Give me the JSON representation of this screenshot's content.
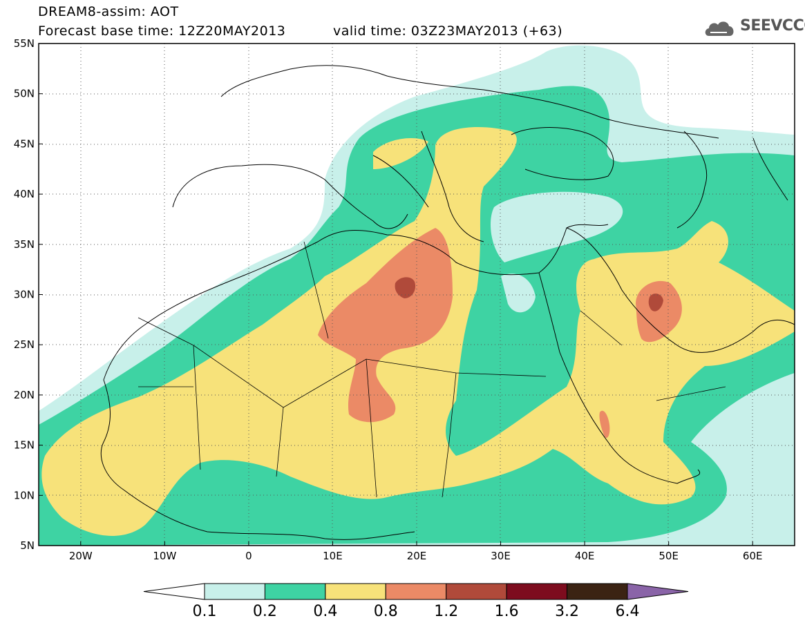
{
  "title": {
    "line1": "DREAM8-assim: AOT",
    "line2": "Forecast base time: 12Z20MAY2013",
    "valid": "valid time: 03Z23MAY2013 (+63)"
  },
  "logo": {
    "text": "SEEVCCC",
    "icon": "cloud-icon"
  },
  "map": {
    "lon_range": [
      -25,
      65
    ],
    "lat_range": [
      5,
      55
    ],
    "lon_ticks": [
      "20W",
      "10W",
      "0",
      "10E",
      "20E",
      "30E",
      "40E",
      "50E",
      "60E"
    ],
    "lat_ticks": [
      "55N",
      "50N",
      "45N",
      "40N",
      "35N",
      "30N",
      "25N",
      "20N",
      "15N",
      "10N",
      "5N"
    ],
    "grid": "dotted"
  },
  "colorbar": {
    "levels": [
      "0.1",
      "0.2",
      "0.4",
      "0.8",
      "1.2",
      "1.6",
      "3.2",
      "6.4"
    ],
    "colors": [
      "#ffffff",
      "#c8f0ea",
      "#3ed3a3",
      "#f7e27a",
      "#eb8a66",
      "#b04a3a",
      "#7d0c1e",
      "#3b2313",
      "#8a64a8"
    ]
  }
}
